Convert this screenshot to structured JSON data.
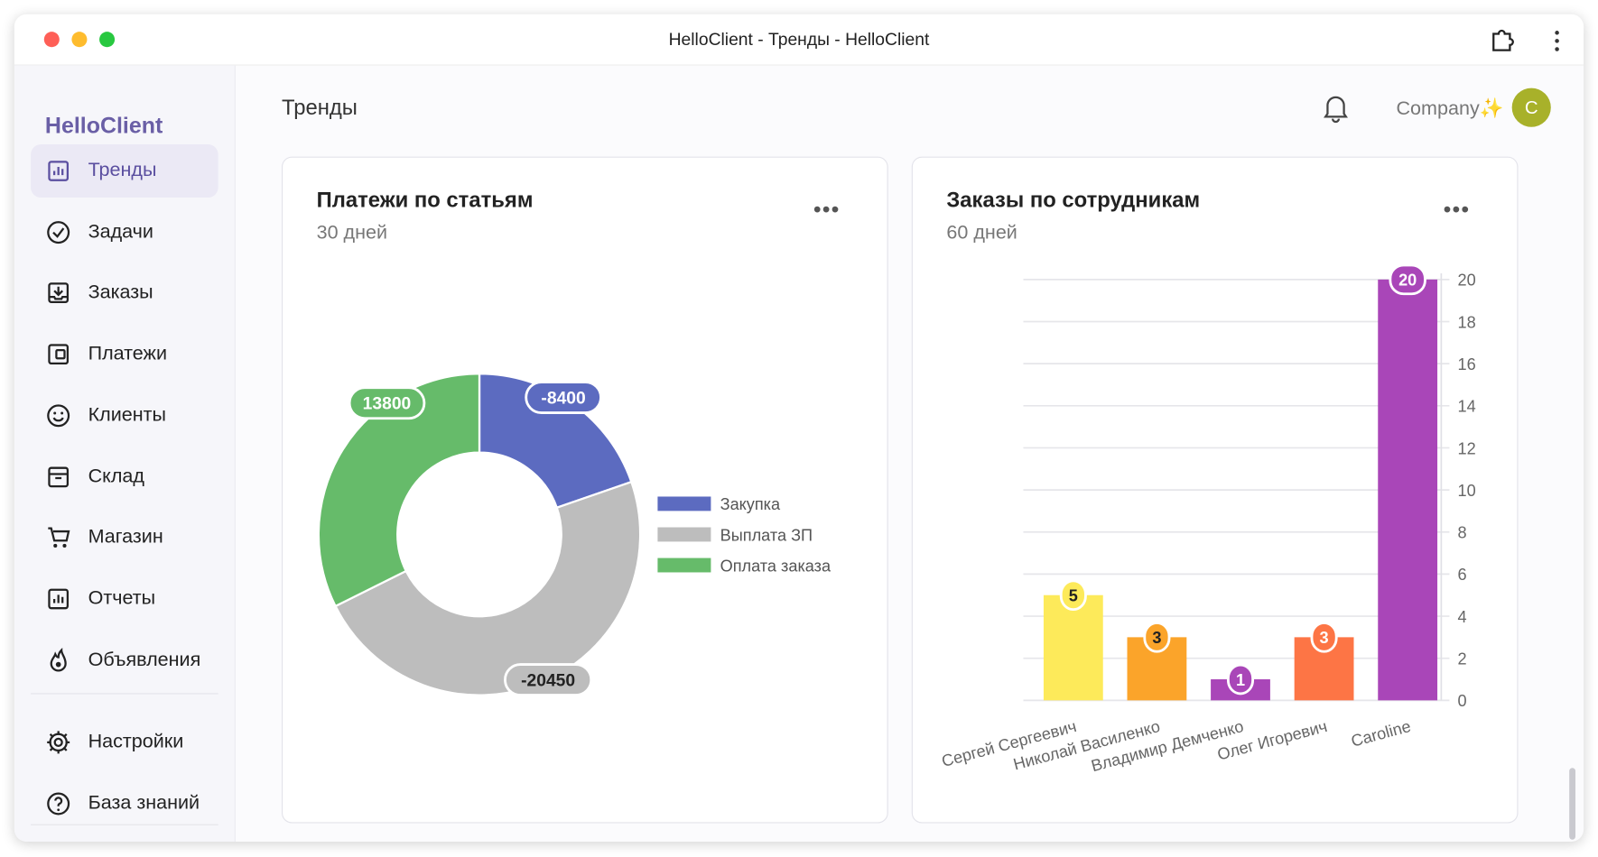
{
  "window": {
    "title": "HelloClient - Тренды - HelloClient"
  },
  "sidebar": {
    "logo": "HelloClient",
    "items": [
      {
        "label": "Тренды",
        "icon": "chart-icon",
        "active": true
      },
      {
        "label": "Задачи",
        "icon": "check-circle-icon"
      },
      {
        "label": "Заказы",
        "icon": "inbox-download-icon"
      },
      {
        "label": "Платежи",
        "icon": "wallet-icon"
      },
      {
        "label": "Клиенты",
        "icon": "smiley-icon"
      },
      {
        "label": "Склад",
        "icon": "archive-icon"
      },
      {
        "label": "Магазин",
        "icon": "cart-icon"
      },
      {
        "label": "Отчеты",
        "icon": "report-chart-icon"
      },
      {
        "label": "Объявления",
        "icon": "flame-icon"
      }
    ],
    "bottom_items": [
      {
        "label": "Настройки",
        "icon": "gear-icon"
      },
      {
        "label": "База знаний",
        "icon": "help-circle-icon"
      }
    ]
  },
  "header": {
    "title": "Тренды",
    "company": "Company✨",
    "avatar_letter": "C",
    "avatar_color": "#a8b12a"
  },
  "cards": [
    {
      "title": "Платежи по статьям",
      "subtitle": "30 дней",
      "menu": "•••"
    },
    {
      "title": "Заказы по сотрудникам",
      "subtitle": "60 дней",
      "menu": "•••"
    }
  ],
  "chart_data": [
    {
      "type": "pie",
      "donut": true,
      "categories": [
        "Закупка",
        "Выплата ЗП",
        "Оплата заказа"
      ],
      "values": [
        -8400,
        -20450,
        13800
      ],
      "labels": [
        "-8400",
        "-20450",
        "13800"
      ],
      "colors": [
        "#5c6bc0",
        "#bdbdbd",
        "#66bb6a"
      ],
      "legend": "right"
    },
    {
      "type": "bar",
      "categories": [
        "Сергей Сергеевич",
        "Николай Василенко",
        "Владимир Демченко",
        "Олег Игоревич",
        "Caroline"
      ],
      "values": [
        5,
        3,
        1,
        3,
        20
      ],
      "colors": [
        "#fdea5a",
        "#fba42a",
        "#a946b8",
        "#fd7545",
        "#a946b8"
      ],
      "ylim": [
        0,
        20
      ],
      "yticks": [
        "0",
        "2",
        "4",
        "6",
        "8",
        "10",
        "12",
        "14",
        "16",
        "18",
        "20"
      ],
      "yaxis": "right",
      "grid": true
    }
  ]
}
